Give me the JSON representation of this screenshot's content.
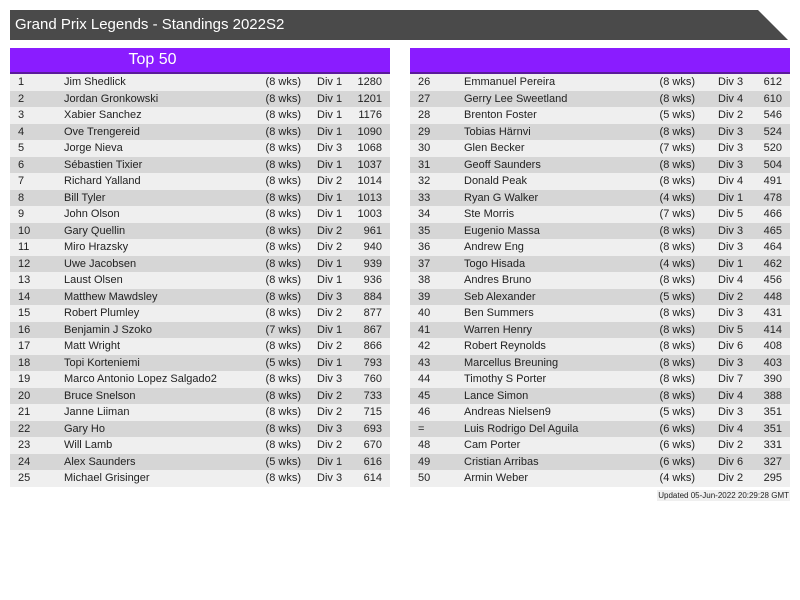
{
  "title": "Grand Prix Legends - Standings 2022S2",
  "left_header": "Top 50",
  "right_header": "",
  "updated": "Updated 05-Jun-2022 20:29:28 GMT",
  "colors": {
    "title_bg": "#4a4a4a",
    "header_bg": "#8a1cff"
  },
  "left_rows": [
    [
      "1",
      "Jim Shedlick",
      "(8 wks)",
      "Div 1",
      "1280"
    ],
    [
      "2",
      "Jordan Gronkowski",
      "(8 wks)",
      "Div 1",
      "1201"
    ],
    [
      "3",
      "Xabier Sanchez",
      "(8 wks)",
      "Div 1",
      "1176"
    ],
    [
      "4",
      "Ove Trengereid",
      "(8 wks)",
      "Div 1",
      "1090"
    ],
    [
      "5",
      "Jorge Nieva",
      "(8 wks)",
      "Div 3",
      "1068"
    ],
    [
      "6",
      "Sébastien Tixier",
      "(8 wks)",
      "Div 1",
      "1037"
    ],
    [
      "7",
      "Richard Yalland",
      "(8 wks)",
      "Div 2",
      "1014"
    ],
    [
      "8",
      "Bill Tyler",
      "(8 wks)",
      "Div 1",
      "1013"
    ],
    [
      "9",
      "John Olson",
      "(8 wks)",
      "Div 1",
      "1003"
    ],
    [
      "10",
      "Gary Quellin",
      "(8 wks)",
      "Div 2",
      "961"
    ],
    [
      "11",
      "Miro Hrazsky",
      "(8 wks)",
      "Div 2",
      "940"
    ],
    [
      "12",
      "Uwe Jacobsen",
      "(8 wks)",
      "Div 1",
      "939"
    ],
    [
      "13",
      "Laust Olsen",
      "(8 wks)",
      "Div 1",
      "936"
    ],
    [
      "14",
      "Matthew Mawdsley",
      "(8 wks)",
      "Div 3",
      "884"
    ],
    [
      "15",
      "Robert Plumley",
      "(8 wks)",
      "Div 2",
      "877"
    ],
    [
      "16",
      "Benjamin J Szoko",
      "(7 wks)",
      "Div 1",
      "867"
    ],
    [
      "17",
      "Matt Wright",
      "(8 wks)",
      "Div 2",
      "866"
    ],
    [
      "18",
      "Topi Korteniemi",
      "(5 wks)",
      "Div 1",
      "793"
    ],
    [
      "19",
      "Marco Antonio Lopez Salgado2",
      "(8 wks)",
      "Div 3",
      "760"
    ],
    [
      "20",
      "Bruce Snelson",
      "(8 wks)",
      "Div 2",
      "733"
    ],
    [
      "21",
      "Janne Liiman",
      "(8 wks)",
      "Div 2",
      "715"
    ],
    [
      "22",
      "Gary Ho",
      "(8 wks)",
      "Div 3",
      "693"
    ],
    [
      "23",
      "Will Lamb",
      "(8 wks)",
      "Div 2",
      "670"
    ],
    [
      "24",
      "Alex Saunders",
      "(5 wks)",
      "Div 1",
      "616"
    ],
    [
      "25",
      "Michael Grisinger",
      "(8 wks)",
      "Div 3",
      "614"
    ]
  ],
  "right_rows": [
    [
      "26",
      "Emmanuel Pereira",
      "(8 wks)",
      "Div 3",
      "612"
    ],
    [
      "27",
      "Gerry Lee Sweetland",
      "(8 wks)",
      "Div 4",
      "610"
    ],
    [
      "28",
      "Brenton Foster",
      "(5 wks)",
      "Div 2",
      "546"
    ],
    [
      "29",
      "Tobias Härnvi",
      "(8 wks)",
      "Div 3",
      "524"
    ],
    [
      "30",
      "Glen Becker",
      "(7 wks)",
      "Div 3",
      "520"
    ],
    [
      "31",
      "Geoff Saunders",
      "(8 wks)",
      "Div 3",
      "504"
    ],
    [
      "32",
      "Donald Peak",
      "(8 wks)",
      "Div 4",
      "491"
    ],
    [
      "33",
      "Ryan G Walker",
      "(4 wks)",
      "Div 1",
      "478"
    ],
    [
      "34",
      "Ste Morris",
      "(7 wks)",
      "Div 5",
      "466"
    ],
    [
      "35",
      "Eugenio Massa",
      "(8 wks)",
      "Div 3",
      "465"
    ],
    [
      "36",
      "Andrew Eng",
      "(8 wks)",
      "Div 3",
      "464"
    ],
    [
      "37",
      "Togo Hisada",
      "(4 wks)",
      "Div 1",
      "462"
    ],
    [
      "38",
      "Andres Bruno",
      "(8 wks)",
      "Div 4",
      "456"
    ],
    [
      "39",
      "Seb Alexander",
      "(5 wks)",
      "Div 2",
      "448"
    ],
    [
      "40",
      "Ben Summers",
      "(8 wks)",
      "Div 3",
      "431"
    ],
    [
      "41",
      "Warren Henry",
      "(8 wks)",
      "Div 5",
      "414"
    ],
    [
      "42",
      "Robert Reynolds",
      "(8 wks)",
      "Div 6",
      "408"
    ],
    [
      "43",
      "Marcellus Breuning",
      "(8 wks)",
      "Div 3",
      "403"
    ],
    [
      "44",
      "Timothy S Porter",
      "(8 wks)",
      "Div 7",
      "390"
    ],
    [
      "45",
      "Lance Simon",
      "(8 wks)",
      "Div 4",
      "388"
    ],
    [
      "46",
      "Andreas Nielsen9",
      "(5 wks)",
      "Div 3",
      "351"
    ],
    [
      "=",
      "Luis Rodrigo Del Aguila",
      "(6 wks)",
      "Div 4",
      "351"
    ],
    [
      "48",
      "Cam Porter",
      "(6 wks)",
      "Div 2",
      "331"
    ],
    [
      "49",
      "Cristian Arribas",
      "(6 wks)",
      "Div 6",
      "327"
    ],
    [
      "50",
      "Armin Weber",
      "(4 wks)",
      "Div 2",
      "295"
    ]
  ]
}
